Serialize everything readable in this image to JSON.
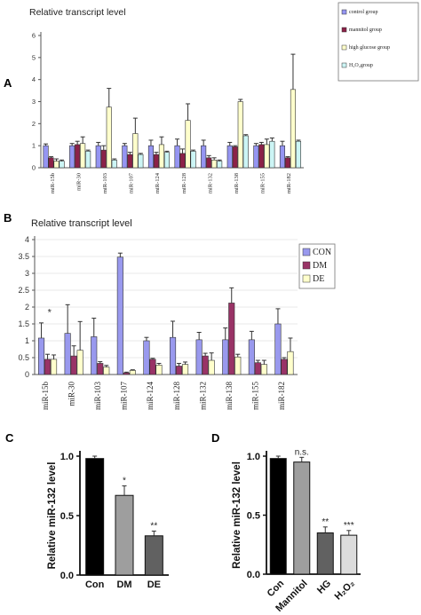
{
  "chart_data": [
    {
      "panel": "A",
      "type": "bar",
      "title": "Relative transcript level",
      "ylim": [
        0,
        6
      ],
      "yticks": [
        0,
        1,
        2,
        3,
        4,
        5,
        6
      ],
      "categories": [
        "miR-15b",
        "miR-30",
        "miR-103",
        "miR-107",
        "miR-124",
        "miR-128",
        "miR-132",
        "miR-138",
        "miR-155",
        "miR-182"
      ],
      "series": [
        {
          "name": "control group",
          "color": "#9595f2",
          "values": [
            1.0,
            1.0,
            1.0,
            1.0,
            1.0,
            1.0,
            1.0,
            1.0,
            1.0,
            1.0
          ],
          "errors": [
            0.08,
            0.1,
            0.15,
            0.1,
            0.25,
            0.3,
            0.25,
            0.15,
            0.1,
            0.2
          ]
        },
        {
          "name": "mannitol group",
          "color": "#8b2148",
          "values": [
            0.45,
            1.05,
            0.8,
            0.6,
            0.6,
            0.65,
            0.45,
            0.95,
            1.05,
            0.45
          ],
          "errors": [
            0.05,
            0.15,
            0.2,
            0.1,
            0.1,
            0.2,
            0.1,
            0.05,
            0.1,
            0.05
          ]
        },
        {
          "name": "high glucose group",
          "color": "#ffffcc",
          "values": [
            0.3,
            1.1,
            2.75,
            1.55,
            1.05,
            2.15,
            0.35,
            3.0,
            1.05,
            3.55
          ],
          "errors": [
            0.1,
            0.3,
            0.85,
            0.7,
            0.35,
            0.75,
            0.1,
            0.1,
            0.25,
            1.6
          ]
        },
        {
          "name": "H₂O₂group",
          "color": "#ccf5f5",
          "values": [
            0.3,
            0.75,
            0.35,
            0.6,
            0.7,
            0.75,
            0.3,
            1.45,
            1.2,
            1.2
          ],
          "errors": [
            0.05,
            0.05,
            0.05,
            0.05,
            0.05,
            0.05,
            0.05,
            0.05,
            0.15,
            0.05
          ]
        }
      ]
    },
    {
      "panel": "B",
      "type": "bar",
      "title": "Relative transcript level",
      "ylim": [
        0,
        4
      ],
      "yticks": [
        "0",
        "0.5",
        "1",
        "1.5",
        "2",
        "2.5",
        "3",
        "3.5",
        "4"
      ],
      "annotation": "*",
      "categories": [
        "miR-15b",
        "miR-30",
        "miR-103",
        "miR-107",
        "miR-124",
        "miR-128",
        "miR-132",
        "miR-138",
        "miR-155",
        "miR-182"
      ],
      "series": [
        {
          "name": "CON",
          "color": "#9999ee",
          "values": [
            1.08,
            1.22,
            1.12,
            3.48,
            1.0,
            1.1,
            1.03,
            1.03,
            1.03,
            1.5
          ],
          "errors": [
            0.45,
            0.85,
            0.55,
            0.12,
            0.1,
            0.48,
            0.22,
            0.35,
            0.25,
            0.45
          ]
        },
        {
          "name": "DM",
          "color": "#993366",
          "values": [
            0.45,
            0.55,
            0.33,
            0.05,
            0.45,
            0.25,
            0.55,
            2.12,
            0.35,
            0.45
          ],
          "errors": [
            0.15,
            0.3,
            0.05,
            0.02,
            0.03,
            0.08,
            0.08,
            0.45,
            0.07,
            0.05
          ]
        },
        {
          "name": "DE",
          "color": "#ffffcc",
          "values": [
            0.45,
            0.72,
            0.22,
            0.12,
            0.28,
            0.3,
            0.42,
            0.52,
            0.3,
            0.68
          ],
          "errors": [
            0.13,
            0.85,
            0.05,
            0.02,
            0.05,
            0.07,
            0.22,
            0.08,
            0.12,
            0.4
          ]
        }
      ]
    },
    {
      "panel": "C",
      "type": "bar",
      "ylabel": "Relative miR-132 level",
      "ylim": [
        0,
        1.0
      ],
      "yticks": [
        "0.0",
        "0.5",
        "1.0"
      ],
      "categories": [
        "Con",
        "DM",
        "DE"
      ],
      "values": [
        0.98,
        0.67,
        0.33
      ],
      "errors": [
        0.02,
        0.08,
        0.04
      ],
      "significance": [
        "",
        "*",
        "**"
      ],
      "colors": [
        "#000000",
        "#9e9e9e",
        "#616161"
      ]
    },
    {
      "panel": "D",
      "type": "bar",
      "ylabel": "Relative miR-132 level",
      "ylim": [
        0,
        1.0
      ],
      "yticks": [
        "0.0",
        "0.5",
        "1.0"
      ],
      "categories": [
        "Con",
        "Mannitol",
        "HG",
        "H₂O₂"
      ],
      "values": [
        0.98,
        0.95,
        0.35,
        0.33
      ],
      "errors": [
        0.02,
        0.04,
        0.05,
        0.04
      ],
      "significance": [
        "",
        "n.s.",
        "**",
        "***"
      ],
      "colors": [
        "#000000",
        "#9e9e9e",
        "#616161",
        "#dcdcdc"
      ]
    }
  ],
  "panels": {
    "a": "A",
    "b": "B",
    "c": "C",
    "d": "D"
  },
  "colors": {
    "axis": "#444444",
    "bar_stroke": "#333333"
  }
}
